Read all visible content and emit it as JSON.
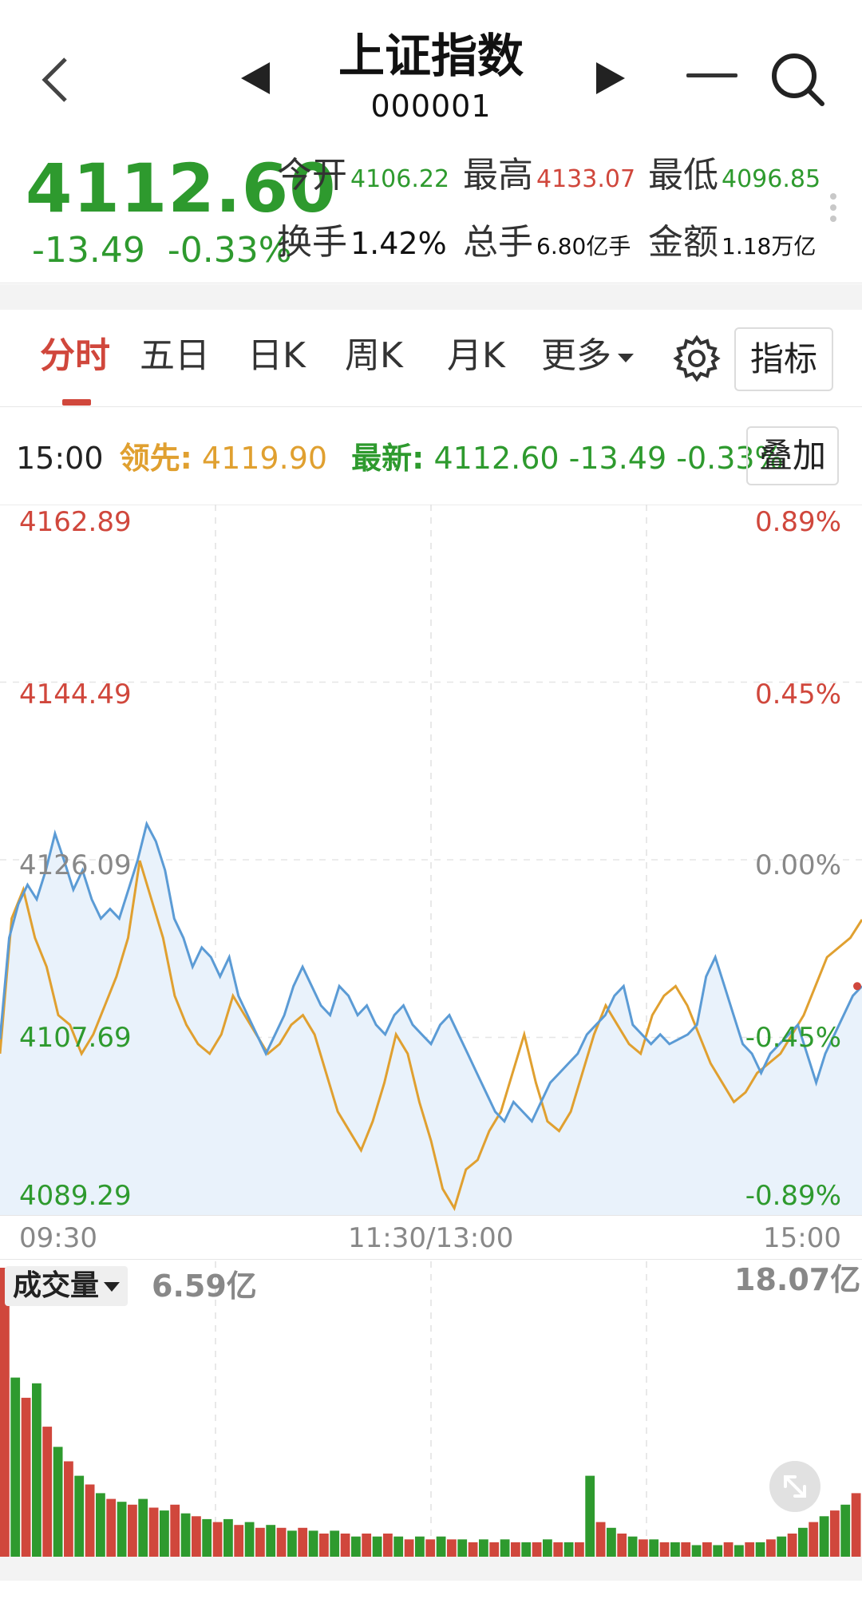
{
  "header": {
    "title": "上证指数",
    "code": "000001",
    "icons": [
      "back-arrow-icon",
      "prev-triangle-icon",
      "next-triangle-icon",
      "minimize-icon",
      "search-icon"
    ]
  },
  "quote": {
    "price": "4112.60",
    "change": "-13.49",
    "change_pct": "-0.33%",
    "open_label": "今开",
    "open_value": "4106.22",
    "high_label": "最高",
    "high_value": "4133.07",
    "low_label": "最低",
    "low_value": "4096.85",
    "turnover_label": "换手",
    "turnover_value": "1.42%",
    "volume_label": "总手",
    "volume_value": "6.80亿手",
    "amount_label": "金额",
    "amount_value": "1.18万亿"
  },
  "tabs": {
    "items": [
      "分时",
      "五日",
      "日K",
      "周K",
      "月K",
      "更多"
    ],
    "active": "分时",
    "indicator_label": "指标"
  },
  "infobar": {
    "time": "15:00",
    "lead_label": "领先:",
    "lead_value": "4119.90",
    "new_label": "最新:",
    "new_value": "4112.60 -13.49 -0.33%",
    "overlay_label": "叠加"
  },
  "colors": {
    "up_red": "#d0473c",
    "down_green": "#2e9a2e",
    "price_line": "#5b9bd5",
    "lead_line": "#e0a030",
    "area_fill": "#e9f2fb"
  },
  "chart_data": [
    {
      "type": "line",
      "y_left_ticks": [
        "4162.89",
        "4144.49",
        "4126.09",
        "4107.69",
        "4089.29"
      ],
      "y_right_ticks": [
        "0.89%",
        "0.45%",
        "0.00%",
        "-0.45%",
        "-0.89%"
      ],
      "x_ticks": [
        "09:30",
        "11:30/13:00",
        "15:00"
      ],
      "ylim": [
        4089.29,
        4162.89
      ],
      "prev_close": 4126.09,
      "series": [
        {
          "values": [
            4107.5,
            4118,
            4121.5,
            4123.5,
            4122,
            4125,
            4128.8,
            4126,
            4123,
            4125,
            4122,
            4120,
            4121,
            4120,
            4123,
            4126,
            4129.8,
            4128,
            4125,
            4120,
            4118,
            4115,
            4117,
            4116,
            4114,
            4116,
            4112,
            4110,
            4108,
            4106,
            4108,
            4110,
            4113,
            4115,
            4113,
            4111,
            4110,
            4113,
            4112,
            4110,
            4111,
            4109,
            4108,
            4110,
            4111,
            4109,
            4108,
            4107,
            4109,
            4110,
            4108,
            4106,
            4104,
            4102,
            4100,
            4099,
            4101,
            4100,
            4099,
            4101,
            4103,
            4104,
            4105,
            4106,
            4108,
            4109,
            4110,
            4112,
            4113,
            4109,
            4108,
            4107,
            4108,
            4107,
            4107.5,
            4108,
            4109,
            4114,
            4116,
            4113,
            4110,
            4107,
            4106,
            4104,
            4106,
            4107,
            4108,
            4109,
            4106,
            4103,
            4106,
            4108,
            4110,
            4112,
            4113
          ],
          "color": "#5b9bd5"
        },
        {
          "values": [
            4106,
            4120,
            4123,
            4118,
            4115,
            4110,
            4109,
            4106,
            4108,
            4111,
            4114,
            4118,
            4126,
            4122,
            4118,
            4112,
            4109,
            4107,
            4106,
            4108,
            4112,
            4110,
            4108,
            4106,
            4107,
            4109,
            4110,
            4108,
            4104,
            4100,
            4098,
            4096,
            4099,
            4103,
            4108,
            4106,
            4101,
            4097,
            4092,
            4090,
            4094,
            4095,
            4098,
            4100,
            4104,
            4108,
            4103,
            4099,
            4098,
            4100,
            4104,
            4108,
            4111,
            4109,
            4107,
            4106,
            4110,
            4112,
            4113,
            4111,
            4108,
            4105,
            4103,
            4101,
            4102,
            4104,
            4105,
            4106,
            4108,
            4110,
            4113,
            4116,
            4117,
            4118,
            4119.9
          ],
          "color": "#e0a030"
        }
      ]
    },
    {
      "type": "bar",
      "title": "成交量",
      "current_value_label": "6.59亿",
      "max_label": "18.07亿",
      "bars": [
        {
          "v": 1.0,
          "c": "r"
        },
        {
          "v": 0.62,
          "c": "g"
        },
        {
          "v": 0.55,
          "c": "r"
        },
        {
          "v": 0.6,
          "c": "g"
        },
        {
          "v": 0.45,
          "c": "r"
        },
        {
          "v": 0.38,
          "c": "g"
        },
        {
          "v": 0.33,
          "c": "r"
        },
        {
          "v": 0.28,
          "c": "g"
        },
        {
          "v": 0.25,
          "c": "r"
        },
        {
          "v": 0.22,
          "c": "g"
        },
        {
          "v": 0.2,
          "c": "r"
        },
        {
          "v": 0.19,
          "c": "g"
        },
        {
          "v": 0.18,
          "c": "r"
        },
        {
          "v": 0.2,
          "c": "g"
        },
        {
          "v": 0.17,
          "c": "r"
        },
        {
          "v": 0.16,
          "c": "g"
        },
        {
          "v": 0.18,
          "c": "r"
        },
        {
          "v": 0.15,
          "c": "g"
        },
        {
          "v": 0.14,
          "c": "r"
        },
        {
          "v": 0.13,
          "c": "g"
        },
        {
          "v": 0.12,
          "c": "r"
        },
        {
          "v": 0.13,
          "c": "g"
        },
        {
          "v": 0.11,
          "c": "r"
        },
        {
          "v": 0.12,
          "c": "g"
        },
        {
          "v": 0.1,
          "c": "r"
        },
        {
          "v": 0.11,
          "c": "g"
        },
        {
          "v": 0.1,
          "c": "r"
        },
        {
          "v": 0.09,
          "c": "g"
        },
        {
          "v": 0.1,
          "c": "r"
        },
        {
          "v": 0.09,
          "c": "g"
        },
        {
          "v": 0.08,
          "c": "r"
        },
        {
          "v": 0.09,
          "c": "g"
        },
        {
          "v": 0.08,
          "c": "r"
        },
        {
          "v": 0.07,
          "c": "g"
        },
        {
          "v": 0.08,
          "c": "r"
        },
        {
          "v": 0.07,
          "c": "g"
        },
        {
          "v": 0.08,
          "c": "r"
        },
        {
          "v": 0.07,
          "c": "g"
        },
        {
          "v": 0.06,
          "c": "r"
        },
        {
          "v": 0.07,
          "c": "g"
        },
        {
          "v": 0.06,
          "c": "r"
        },
        {
          "v": 0.07,
          "c": "g"
        },
        {
          "v": 0.06,
          "c": "r"
        },
        {
          "v": 0.06,
          "c": "g"
        },
        {
          "v": 0.05,
          "c": "r"
        },
        {
          "v": 0.06,
          "c": "g"
        },
        {
          "v": 0.05,
          "c": "r"
        },
        {
          "v": 0.06,
          "c": "g"
        },
        {
          "v": 0.05,
          "c": "r"
        },
        {
          "v": 0.05,
          "c": "g"
        },
        {
          "v": 0.05,
          "c": "r"
        },
        {
          "v": 0.06,
          "c": "g"
        },
        {
          "v": 0.05,
          "c": "r"
        },
        {
          "v": 0.05,
          "c": "g"
        },
        {
          "v": 0.05,
          "c": "r"
        },
        {
          "v": 0.28,
          "c": "g"
        },
        {
          "v": 0.12,
          "c": "r"
        },
        {
          "v": 0.1,
          "c": "g"
        },
        {
          "v": 0.08,
          "c": "r"
        },
        {
          "v": 0.07,
          "c": "g"
        },
        {
          "v": 0.06,
          "c": "r"
        },
        {
          "v": 0.06,
          "c": "g"
        },
        {
          "v": 0.05,
          "c": "r"
        },
        {
          "v": 0.05,
          "c": "g"
        },
        {
          "v": 0.05,
          "c": "r"
        },
        {
          "v": 0.04,
          "c": "g"
        },
        {
          "v": 0.05,
          "c": "r"
        },
        {
          "v": 0.04,
          "c": "g"
        },
        {
          "v": 0.05,
          "c": "r"
        },
        {
          "v": 0.04,
          "c": "g"
        },
        {
          "v": 0.05,
          "c": "r"
        },
        {
          "v": 0.05,
          "c": "g"
        },
        {
          "v": 0.06,
          "c": "r"
        },
        {
          "v": 0.07,
          "c": "g"
        },
        {
          "v": 0.08,
          "c": "r"
        },
        {
          "v": 0.1,
          "c": "g"
        },
        {
          "v": 0.12,
          "c": "r"
        },
        {
          "v": 0.14,
          "c": "g"
        },
        {
          "v": 0.16,
          "c": "r"
        },
        {
          "v": 0.18,
          "c": "g"
        },
        {
          "v": 0.22,
          "c": "r"
        }
      ]
    }
  ]
}
